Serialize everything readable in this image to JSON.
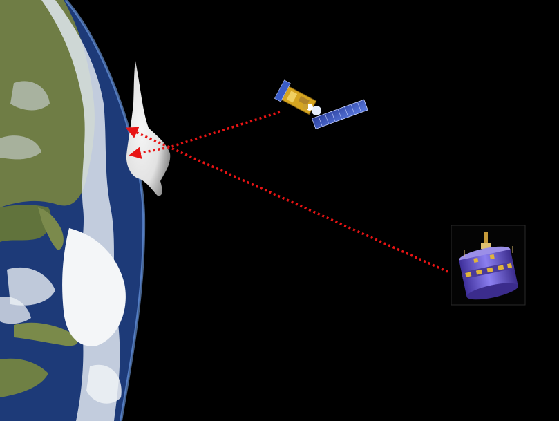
{
  "scene": {
    "colors": {
      "space": "#000000",
      "ocean": "#1d3a78",
      "land": "#6f7d45",
      "cloud": "#f4f6f8",
      "plume": "#e6e6e6",
      "signal": "#e81414",
      "panel_blue": "#3a5cc8",
      "satellite_body": "#d6a520",
      "drum_purple": "#6a5bd0"
    },
    "icons": {
      "earth": "earth-limb",
      "polar_satellite": "solar-panel-satellite-icon",
      "geo_satellite": "spinning-drum-satellite-icon",
      "plume": "volcanic-ash-plume",
      "arrows": "dotted-arrow-icon"
    }
  }
}
